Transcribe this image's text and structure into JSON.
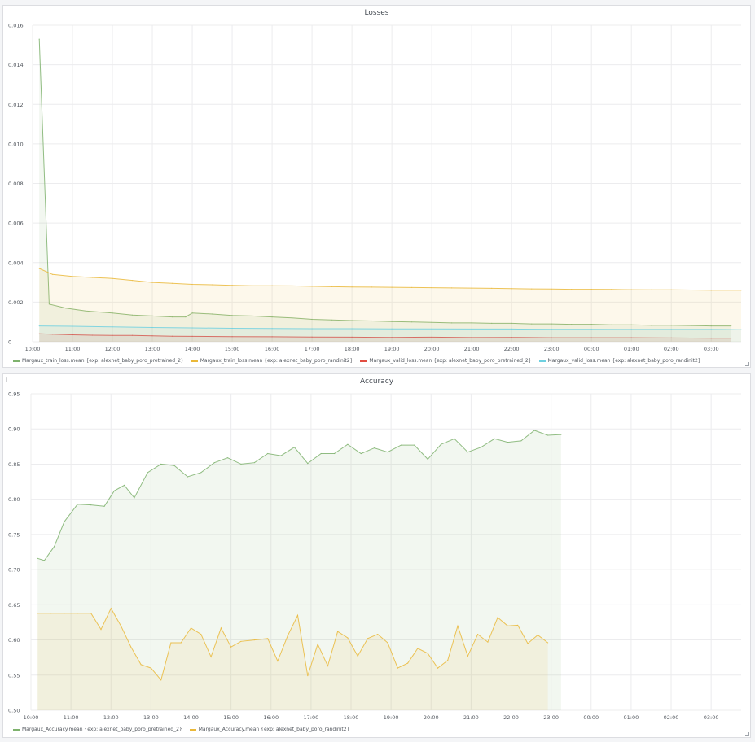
{
  "chart_data": [
    {
      "id": "losses",
      "type": "area",
      "title": "Losses",
      "ylim": [
        0,
        0.016
      ],
      "yticks": [
        0,
        0.002,
        0.004,
        0.006,
        0.008,
        0.01,
        0.012,
        0.014,
        0.016
      ],
      "ytick_labels": [
        "0",
        "0.002",
        "0.004",
        "0.006",
        "0.008",
        "0.010",
        "0.012",
        "0.014",
        "0.016"
      ],
      "xlim": [
        10.0,
        3.75
      ],
      "xticks": [
        "10:00",
        "11:00",
        "12:00",
        "13:00",
        "14:00",
        "15:00",
        "16:00",
        "17:00",
        "18:00",
        "19:00",
        "20:00",
        "21:00",
        "22:00",
        "23:00",
        "00:00",
        "01:00",
        "02:00",
        "03:00"
      ],
      "grid": true,
      "legend_position": "bottom",
      "series": [
        {
          "name": "Margaux_train_loss.mean {exp: alexnet_baby_poro_pretrained_2}",
          "color": "#7eb26d",
          "points": [
            [
              "10:10",
              0.0153
            ],
            [
              "10:25",
              0.0019
            ],
            [
              "10:50",
              0.0017
            ],
            [
              "11:20",
              0.00155
            ],
            [
              "12:00",
              0.00145
            ],
            [
              "12:30",
              0.00135
            ],
            [
              "13:00",
              0.0013
            ],
            [
              "13:30",
              0.00125
            ],
            [
              "13:50",
              0.00125
            ],
            [
              "14:00",
              0.00145
            ],
            [
              "14:30",
              0.0014
            ],
            [
              "15:00",
              0.00133
            ],
            [
              "15:30",
              0.0013
            ],
            [
              "16:00",
              0.00125
            ],
            [
              "16:30",
              0.0012
            ],
            [
              "17:00",
              0.00113
            ],
            [
              "17:30",
              0.0011
            ],
            [
              "18:00",
              0.00107
            ],
            [
              "18:30",
              0.00105
            ],
            [
              "19:00",
              0.00102
            ],
            [
              "19:30",
              0.001
            ],
            [
              "20:00",
              0.00098
            ],
            [
              "20:30",
              0.00095
            ],
            [
              "21:00",
              0.00095
            ],
            [
              "21:30",
              0.00093
            ],
            [
              "22:00",
              0.00093
            ],
            [
              "22:30",
              0.0009
            ],
            [
              "23:00",
              0.0009
            ],
            [
              "23:30",
              0.00088
            ],
            [
              "00:00",
              0.00088
            ],
            [
              "00:30",
              0.00085
            ],
            [
              "01:00",
              0.00085
            ],
            [
              "01:30",
              0.00083
            ],
            [
              "02:00",
              0.00083
            ],
            [
              "02:30",
              0.00082
            ],
            [
              "03:00",
              0.0008
            ],
            [
              "03:30",
              0.0008
            ]
          ]
        },
        {
          "name": "Margaux_train_loss.mean {exp: alexnet_baby_poro_randinit2}",
          "color": "#eab839",
          "points": [
            [
              "10:10",
              0.0037
            ],
            [
              "10:30",
              0.0034
            ],
            [
              "11:00",
              0.0033
            ],
            [
              "11:30",
              0.00325
            ],
            [
              "12:00",
              0.0032
            ],
            [
              "12:30",
              0.0031
            ],
            [
              "13:00",
              0.003
            ],
            [
              "13:30",
              0.00295
            ],
            [
              "14:00",
              0.0029
            ],
            [
              "14:30",
              0.00288
            ],
            [
              "15:00",
              0.00285
            ],
            [
              "15:30",
              0.00283
            ],
            [
              "16:00",
              0.00283
            ],
            [
              "16:30",
              0.00282
            ],
            [
              "17:00",
              0.0028
            ],
            [
              "17:30",
              0.00278
            ],
            [
              "18:00",
              0.00277
            ],
            [
              "18:30",
              0.00276
            ],
            [
              "19:00",
              0.00275
            ],
            [
              "19:30",
              0.00274
            ],
            [
              "20:00",
              0.00273
            ],
            [
              "20:30",
              0.00272
            ],
            [
              "21:00",
              0.00271
            ],
            [
              "21:30",
              0.0027
            ],
            [
              "22:00",
              0.00268
            ],
            [
              "22:30",
              0.00267
            ],
            [
              "23:00",
              0.00266
            ],
            [
              "23:30",
              0.00265
            ],
            [
              "00:00",
              0.00265
            ],
            [
              "00:30",
              0.00264
            ],
            [
              "01:00",
              0.00263
            ],
            [
              "01:30",
              0.00262
            ],
            [
              "02:00",
              0.00262
            ],
            [
              "02:30",
              0.00261
            ],
            [
              "03:00",
              0.0026
            ],
            [
              "03:45",
              0.0026
            ]
          ]
        },
        {
          "name": "Margaux_valid_loss.mean {exp: alexnet_baby_poro_pretrained_2}",
          "color": "#e24d42",
          "points": [
            [
              "10:10",
              0.0004
            ],
            [
              "10:30",
              0.00038
            ],
            [
              "11:00",
              0.00035
            ],
            [
              "11:30",
              0.00033
            ],
            [
              "12:00",
              0.00032
            ],
            [
              "12:30",
              0.00032
            ],
            [
              "13:00",
              0.0003
            ],
            [
              "13:30",
              0.00028
            ],
            [
              "14:00",
              0.00027
            ],
            [
              "15:00",
              0.00026
            ],
            [
              "16:00",
              0.00025
            ],
            [
              "17:00",
              0.00024
            ],
            [
              "18:00",
              0.00023
            ],
            [
              "19:00",
              0.00022
            ],
            [
              "20:00",
              0.00023
            ],
            [
              "21:00",
              0.00021
            ],
            [
              "22:00",
              0.00022
            ],
            [
              "23:00",
              0.0002
            ],
            [
              "00:00",
              0.0002
            ],
            [
              "01:00",
              0.0002
            ],
            [
              "02:00",
              0.00019
            ],
            [
              "03:00",
              0.00018
            ],
            [
              "03:30",
              0.00018
            ]
          ]
        },
        {
          "name": "Margaux_valid_loss.mean {exp: alexnet_baby_poro_randinit2}",
          "color": "#6ed0e0",
          "points": [
            [
              "10:10",
              0.0008
            ],
            [
              "11:00",
              0.00078
            ],
            [
              "12:00",
              0.00075
            ],
            [
              "13:00",
              0.00072
            ],
            [
              "14:00",
              0.0007
            ],
            [
              "15:00",
              0.00068
            ],
            [
              "16:00",
              0.00067
            ],
            [
              "17:00",
              0.00066
            ],
            [
              "18:00",
              0.00066
            ],
            [
              "19:00",
              0.00065
            ],
            [
              "20:00",
              0.00065
            ],
            [
              "21:00",
              0.00064
            ],
            [
              "22:00",
              0.00064
            ],
            [
              "23:00",
              0.00063
            ],
            [
              "00:00",
              0.00063
            ],
            [
              "01:00",
              0.00062
            ],
            [
              "02:00",
              0.00062
            ],
            [
              "03:00",
              0.00062
            ],
            [
              "03:45",
              0.00061
            ]
          ]
        }
      ]
    },
    {
      "id": "accuracy",
      "type": "area",
      "title": "Accuracy",
      "ylim": [
        0.5,
        0.95
      ],
      "yticks": [
        0.5,
        0.55,
        0.6,
        0.65,
        0.7,
        0.75,
        0.8,
        0.85,
        0.9,
        0.95
      ],
      "ytick_labels": [
        "0.50",
        "0.55",
        "0.60",
        "0.65",
        "0.70",
        "0.75",
        "0.80",
        "0.85",
        "0.90",
        "0.95"
      ],
      "xlim": [
        10.0,
        3.75
      ],
      "xticks": [
        "10:00",
        "11:00",
        "12:00",
        "13:00",
        "14:00",
        "15:00",
        "16:00",
        "17:00",
        "18:00",
        "19:00",
        "20:00",
        "21:00",
        "22:00",
        "23:00",
        "00:00",
        "01:00",
        "02:00",
        "03:00"
      ],
      "grid": true,
      "legend_position": "bottom",
      "series": [
        {
          "name": "Margaux_Accuracy.mean {exp: alexnet_baby_poro_pretrained_2}",
          "color": "#7eb26d",
          "points": [
            [
              "10:10",
              0.716
            ],
            [
              "10:20",
              0.713
            ],
            [
              "10:35",
              0.733
            ],
            [
              "10:50",
              0.768
            ],
            [
              "11:10",
              0.793
            ],
            [
              "11:30",
              0.792
            ],
            [
              "11:50",
              0.79
            ],
            [
              "12:05",
              0.812
            ],
            [
              "12:20",
              0.82
            ],
            [
              "12:35",
              0.802
            ],
            [
              "12:55",
              0.838
            ],
            [
              "13:15",
              0.85
            ],
            [
              "13:35",
              0.848
            ],
            [
              "13:55",
              0.832
            ],
            [
              "14:15",
              0.838
            ],
            [
              "14:35",
              0.852
            ],
            [
              "14:55",
              0.859
            ],
            [
              "15:15",
              0.85
            ],
            [
              "15:35",
              0.852
            ],
            [
              "15:55",
              0.865
            ],
            [
              "16:15",
              0.862
            ],
            [
              "16:35",
              0.874
            ],
            [
              "16:55",
              0.851
            ],
            [
              "17:15",
              0.865
            ],
            [
              "17:35",
              0.865
            ],
            [
              "17:55",
              0.878
            ],
            [
              "18:15",
              0.865
            ],
            [
              "18:35",
              0.873
            ],
            [
              "18:55",
              0.867
            ],
            [
              "19:15",
              0.877
            ],
            [
              "19:35",
              0.877
            ],
            [
              "19:55",
              0.857
            ],
            [
              "20:15",
              0.878
            ],
            [
              "20:35",
              0.886
            ],
            [
              "20:55",
              0.867
            ],
            [
              "21:15",
              0.874
            ],
            [
              "21:35",
              0.886
            ],
            [
              "21:55",
              0.881
            ],
            [
              "22:15",
              0.883
            ],
            [
              "22:35",
              0.898
            ],
            [
              "22:55",
              0.891
            ],
            [
              "23:15",
              0.892
            ]
          ]
        },
        {
          "name": "Margaux_Accuracy.mean {exp: alexnet_baby_poro_randinit2}",
          "color": "#eab839",
          "points": [
            [
              "10:10",
              0.638
            ],
            [
              "10:30",
              0.638
            ],
            [
              "10:50",
              0.638
            ],
            [
              "11:10",
              0.638
            ],
            [
              "11:30",
              0.638
            ],
            [
              "11:45",
              0.615
            ],
            [
              "12:00",
              0.645
            ],
            [
              "12:15",
              0.62
            ],
            [
              "12:30",
              0.59
            ],
            [
              "12:45",
              0.565
            ],
            [
              "13:00",
              0.56
            ],
            [
              "13:15",
              0.543
            ],
            [
              "13:30",
              0.596
            ],
            [
              "13:45",
              0.596
            ],
            [
              "14:00",
              0.617
            ],
            [
              "14:15",
              0.608
            ],
            [
              "14:30",
              0.576
            ],
            [
              "14:45",
              0.617
            ],
            [
              "15:00",
              0.59
            ],
            [
              "15:15",
              0.598
            ],
            [
              "15:35",
              0.6
            ],
            [
              "15:55",
              0.602
            ],
            [
              "16:10",
              0.57
            ],
            [
              "16:25",
              0.606
            ],
            [
              "16:40",
              0.635
            ],
            [
              "16:55",
              0.549
            ],
            [
              "17:10",
              0.594
            ],
            [
              "17:25",
              0.563
            ],
            [
              "17:40",
              0.612
            ],
            [
              "17:55",
              0.603
            ],
            [
              "18:10",
              0.577
            ],
            [
              "18:25",
              0.602
            ],
            [
              "18:40",
              0.608
            ],
            [
              "18:55",
              0.596
            ],
            [
              "19:10",
              0.56
            ],
            [
              "19:25",
              0.567
            ],
            [
              "19:40",
              0.588
            ],
            [
              "19:55",
              0.581
            ],
            [
              "20:10",
              0.56
            ],
            [
              "20:25",
              0.571
            ],
            [
              "20:40",
              0.62
            ],
            [
              "20:55",
              0.577
            ],
            [
              "21:10",
              0.608
            ],
            [
              "21:25",
              0.597
            ],
            [
              "21:40",
              0.632
            ],
            [
              "21:55",
              0.62
            ],
            [
              "22:10",
              0.621
            ],
            [
              "22:25",
              0.595
            ],
            [
              "22:40",
              0.607
            ],
            [
              "22:55",
              0.596
            ]
          ]
        }
      ]
    }
  ]
}
